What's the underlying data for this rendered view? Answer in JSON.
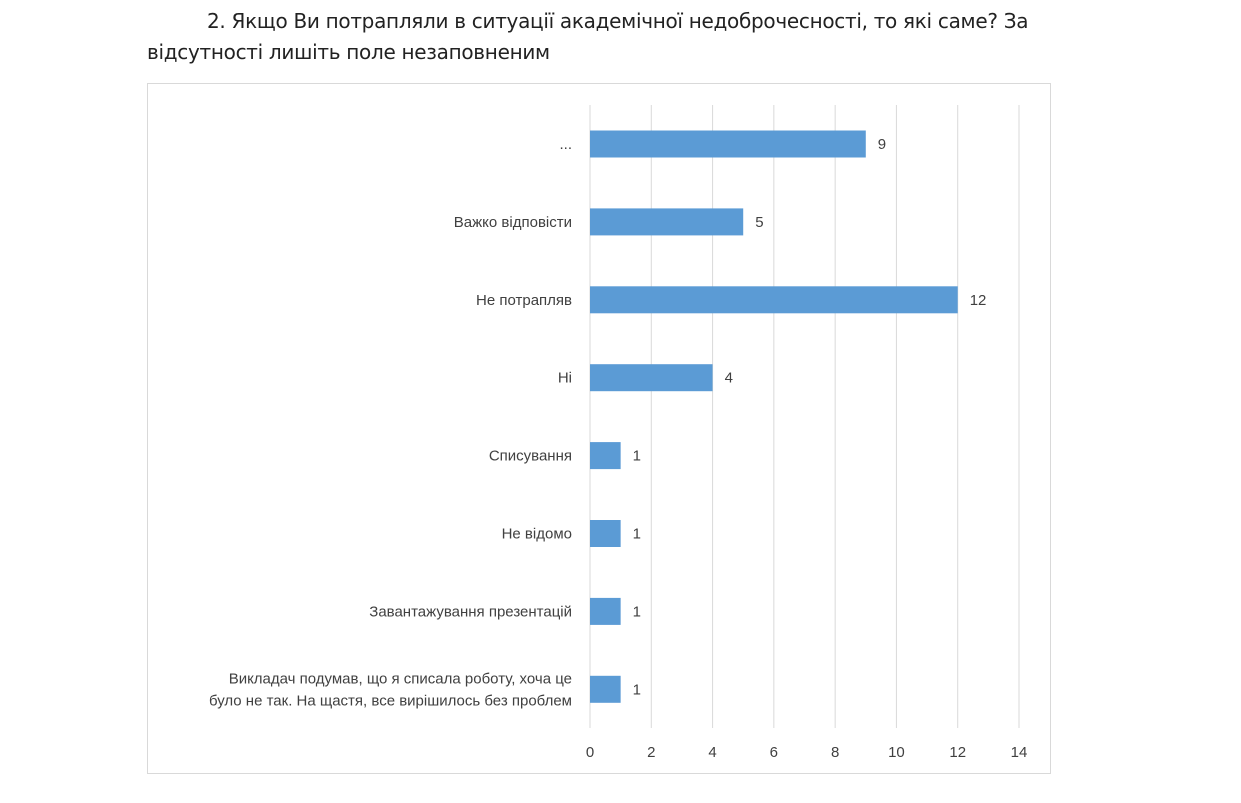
{
  "chart_data": {
    "type": "bar",
    "orientation": "horizontal",
    "title_line1": "2. Якщо Ви потрапляли в ситуації академічної недоброчесності, то які саме? За",
    "title_line2": "відсутності лишіть поле незаповненим",
    "categories": [
      [
        "..."
      ],
      [
        "Важко відповісти"
      ],
      [
        "Не потрапляв"
      ],
      [
        "Ні"
      ],
      [
        "Списування"
      ],
      [
        "Не відомо"
      ],
      [
        "Завантажування презентацій"
      ],
      [
        "Викладач подумав, що я списала роботу, хоча це",
        "було не так. На щастя, все вирішилось без проблем"
      ]
    ],
    "values": [
      9,
      5,
      12,
      4,
      1,
      1,
      1,
      1
    ],
    "xlim": [
      0,
      14
    ],
    "xticks": [
      0,
      2,
      4,
      6,
      8,
      10,
      12,
      14
    ],
    "grid": true,
    "bar_color": "#5B9BD5",
    "grid_color": "#d9d9d9"
  }
}
